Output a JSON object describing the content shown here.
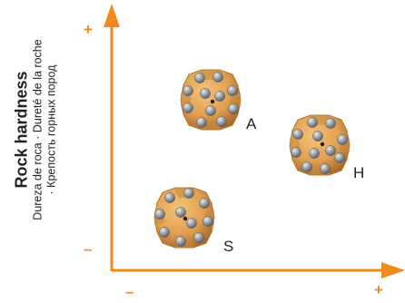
{
  "axis": {
    "y_title": "Rock hardness",
    "y_subtitle_1": "Dureza de roca · Dureté de la roche",
    "y_subtitle_2": "· Крепость горных пород",
    "y_plus": "+",
    "y_minus": "–",
    "x_plus": "+",
    "x_minus": "–"
  },
  "colors": {
    "axis": "#f08a1c",
    "bit_body": "#e0a050",
    "bit_dark": "#b4732a",
    "button": "#9a9ea3"
  },
  "bits": [
    {
      "label": "A",
      "icon": "button-bit-icon"
    },
    {
      "label": "H",
      "icon": "button-bit-icon"
    },
    {
      "label": "S",
      "icon": "button-bit-icon"
    }
  ]
}
